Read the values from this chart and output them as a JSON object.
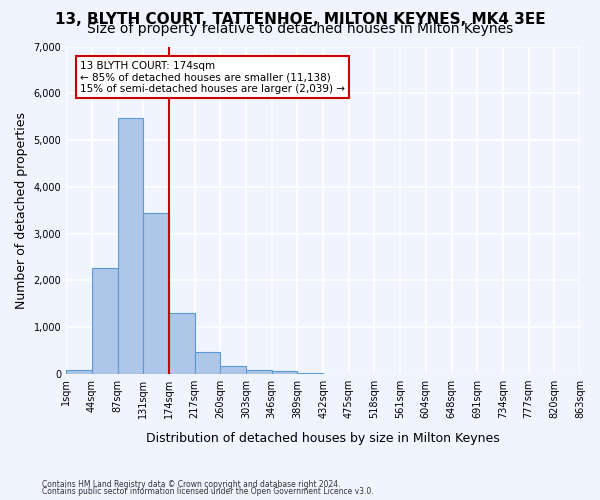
{
  "title": "13, BLYTH COURT, TATTENHOE, MILTON KEYNES, MK4 3EE",
  "subtitle": "Size of property relative to detached houses in Milton Keynes",
  "xlabel": "Distribution of detached houses by size in Milton Keynes",
  "ylabel": "Number of detached properties",
  "footnote1": "Contains HM Land Registry data © Crown copyright and database right 2024.",
  "footnote2": "Contains public sector information licensed under the Open Government Licence v3.0.",
  "bin_labels": [
    "1sqm",
    "44sqm",
    "87sqm",
    "131sqm",
    "174sqm",
    "217sqm",
    "260sqm",
    "303sqm",
    "346sqm",
    "389sqm",
    "432sqm",
    "475sqm",
    "518sqm",
    "561sqm",
    "604sqm",
    "648sqm",
    "691sqm",
    "734sqm",
    "777sqm",
    "820sqm",
    "863sqm"
  ],
  "bar_values": [
    75,
    2270,
    5460,
    3440,
    1310,
    470,
    165,
    90,
    55,
    25,
    0,
    0,
    0,
    0,
    0,
    0,
    0,
    0,
    0,
    0
  ],
  "bar_color": "#aec6e8",
  "bar_edge_color": "#5b9bd5",
  "vline_x": 4,
  "vline_color": "#cc0000",
  "annotation_text": "13 BLYTH COURT: 174sqm\n← 85% of detached houses are smaller (11,138)\n15% of semi-detached houses are larger (2,039) →",
  "annotation_box_color": "#cc0000",
  "ylim": [
    0,
    7000
  ],
  "yticks": [
    0,
    1000,
    2000,
    3000,
    4000,
    5000,
    6000,
    7000
  ],
  "background_color": "#f0f4ff",
  "grid_color": "#ffffff",
  "title_fontsize": 11,
  "subtitle_fontsize": 10,
  "xlabel_fontsize": 9,
  "ylabel_fontsize": 9
}
